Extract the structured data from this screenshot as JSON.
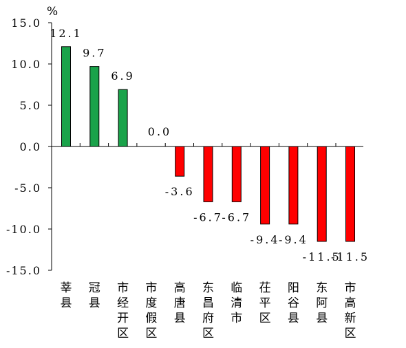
{
  "chart_data": {
    "type": "bar",
    "unit": "%",
    "categories": [
      "莘县",
      "冠县",
      "市经开区",
      "市度假区",
      "高唐县",
      "东昌府区",
      "临清市",
      "茌平区",
      "阳谷县",
      "东阿县",
      "市高新区"
    ],
    "values": [
      12.1,
      9.7,
      6.9,
      0.0,
      -3.6,
      -6.7,
      -6.7,
      -9.4,
      -9.4,
      -11.5,
      -11.5
    ],
    "value_labels": [
      "12.1",
      "9.7",
      "6.9",
      "0.0",
      "-3.6",
      "-6.7",
      "-6.7",
      "-9.4",
      "-9.4",
      "-11.5",
      "-11.5"
    ],
    "ylim": [
      -15,
      15
    ],
    "yticks": [
      15,
      10,
      5,
      0,
      -5,
      -10,
      -15
    ],
    "ytick_labels": [
      "15.0",
      "10.0",
      "5.0",
      "0.0",
      "-5.0",
      "-10.0",
      "-15.0"
    ],
    "grid": false,
    "colors": {
      "positive": "#1aa34a",
      "negative": "#ff0000",
      "outline": "#000000"
    }
  }
}
